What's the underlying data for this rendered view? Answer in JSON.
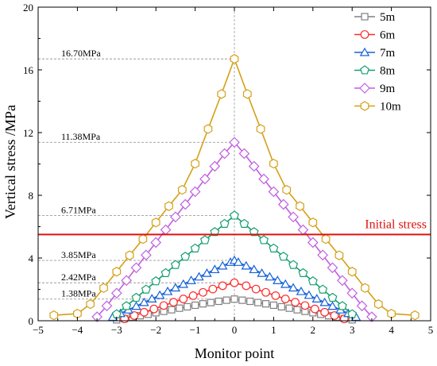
{
  "chart_data": {
    "type": "line",
    "title": "",
    "xlabel": "Monitor point",
    "ylabel": "Vertical stress /MPa",
    "xlim": [
      -5,
      5
    ],
    "ylim": [
      0,
      20
    ],
    "x_ticks": [
      -5,
      -4,
      -3,
      -2,
      -1,
      0,
      1,
      2,
      3,
      4,
      5
    ],
    "y_ticks": [
      0,
      4,
      8,
      12,
      16,
      20
    ],
    "grid": false,
    "legend_position": "top-right",
    "series": [
      {
        "name": "5m",
        "color": "#808080",
        "marker": "square",
        "peak": 1.38,
        "half_width": 3.2,
        "x": [
          -3,
          -2.8,
          -2.6,
          -2.4,
          -2.2,
          -2,
          -1.8,
          -1.6,
          -1.4,
          -1.2,
          -1,
          -0.8,
          -0.6,
          -0.4,
          -0.2,
          0,
          0.2,
          0.4,
          0.6,
          0.8,
          1,
          1.2,
          1.4,
          1.6,
          1.8,
          2,
          2.2,
          2.4,
          2.6,
          2.8,
          3
        ],
        "values": [
          0.06,
          0.14,
          0.23,
          0.32,
          0.41,
          0.51,
          0.6,
          0.7,
          0.8,
          0.89,
          0.99,
          1.08,
          1.16,
          1.24,
          1.31,
          1.38,
          1.31,
          1.24,
          1.16,
          1.08,
          0.99,
          0.89,
          0.8,
          0.7,
          0.6,
          0.51,
          0.41,
          0.32,
          0.23,
          0.14,
          0.06
        ]
      },
      {
        "name": "6m",
        "color": "#ff2a2a",
        "marker": "circle",
        "peak": 2.42,
        "half_width": 3.0,
        "x": [
          -2.8,
          -2.55,
          -2.3,
          -2.05,
          -1.8,
          -1.55,
          -1.3,
          -1.05,
          -0.8,
          -0.55,
          -0.3,
          0,
          0.3,
          0.55,
          0.8,
          1.05,
          1.3,
          1.55,
          1.8,
          2.05,
          2.3,
          2.55,
          2.8
        ],
        "values": [
          0.12,
          0.33,
          0.54,
          0.75,
          0.97,
          1.18,
          1.39,
          1.6,
          1.81,
          2.02,
          2.23,
          2.42,
          2.23,
          2.02,
          1.81,
          1.6,
          1.39,
          1.18,
          0.97,
          0.75,
          0.54,
          0.33,
          0.12
        ]
      },
      {
        "name": "7m",
        "color": "#1560d8",
        "marker": "triangle",
        "peak": 3.85,
        "half_width": 3.3,
        "x": [
          -3.1,
          -2.9,
          -2.7,
          -2.5,
          -2.3,
          -2.1,
          -1.9,
          -1.7,
          -1.5,
          -1.3,
          -1.1,
          -0.9,
          -0.7,
          -0.5,
          -0.3,
          -0.1,
          0,
          0.1,
          0.3,
          0.5,
          0.7,
          0.9,
          1.1,
          1.3,
          1.5,
          1.7,
          1.9,
          2.1,
          2.3,
          2.5,
          2.7,
          2.9,
          3.1
        ],
        "values": [
          0.23,
          0.47,
          0.7,
          0.93,
          1.17,
          1.4,
          1.63,
          1.87,
          2.1,
          2.33,
          2.57,
          2.8,
          3.03,
          3.27,
          3.5,
          3.73,
          3.85,
          3.73,
          3.5,
          3.27,
          3.03,
          2.8,
          2.57,
          2.33,
          2.1,
          1.87,
          1.63,
          1.4,
          1.17,
          0.93,
          0.7,
          0.47,
          0.23
        ]
      },
      {
        "name": "8m",
        "color": "#14a06e",
        "marker": "pentagon",
        "peak": 6.71,
        "half_width": 3.2,
        "x": [
          -3.0,
          -2.75,
          -2.5,
          -2.25,
          -2.0,
          -1.75,
          -1.5,
          -1.25,
          -1.0,
          -0.75,
          -0.5,
          -0.25,
          0,
          0.25,
          0.5,
          0.75,
          1.0,
          1.25,
          1.5,
          1.75,
          2.0,
          2.25,
          2.5,
          2.75,
          3.0
        ],
        "values": [
          0.42,
          0.94,
          1.47,
          1.99,
          2.52,
          3.04,
          3.56,
          4.09,
          4.61,
          5.14,
          5.66,
          6.18,
          6.71,
          6.18,
          5.66,
          5.14,
          4.61,
          4.09,
          3.56,
          3.04,
          2.52,
          1.99,
          1.47,
          0.94,
          0.42
        ]
      },
      {
        "name": "9m",
        "color": "#c060e0",
        "marker": "diamond",
        "peak": 11.38,
        "half_width": 3.5,
        "x": [
          -3.5,
          -3.25,
          -3.0,
          -2.75,
          -2.5,
          -2.25,
          -2.0,
          -1.75,
          -1.5,
          -1.25,
          -1.0,
          -0.75,
          -0.5,
          -0.25,
          0,
          0.25,
          0.5,
          0.75,
          1.0,
          1.25,
          1.5,
          1.75,
          2.0,
          2.25,
          2.5,
          2.75,
          3.0,
          3.25,
          3.5
        ],
        "values": [
          0.25,
          0.95,
          1.76,
          2.57,
          3.38,
          4.19,
          4.99,
          5.8,
          6.62,
          7.42,
          8.23,
          9.04,
          9.85,
          10.66,
          11.38,
          10.66,
          9.85,
          9.04,
          8.23,
          7.42,
          6.62,
          5.8,
          4.99,
          4.19,
          3.38,
          2.57,
          1.76,
          0.95,
          0.25
        ]
      },
      {
        "name": "10m",
        "color": "#d4a017",
        "marker": "hexagon",
        "peak": 16.7,
        "half_width": 4.0,
        "x": [
          -4.6,
          -4.0,
          -3.67,
          -3.33,
          -3.0,
          -2.67,
          -2.33,
          -2.0,
          -1.67,
          -1.33,
          -1.0,
          -0.67,
          -0.33,
          0,
          0.33,
          0.67,
          1.0,
          1.33,
          1.67,
          2.0,
          2.33,
          2.67,
          3.0,
          3.33,
          3.67,
          4.0,
          4.6
        ],
        "values": [
          0.35,
          0.45,
          1.06,
          2.09,
          3.13,
          4.17,
          5.21,
          6.27,
          7.31,
          8.35,
          10.02,
          12.23,
          14.46,
          16.7,
          14.46,
          12.23,
          10.02,
          8.35,
          7.31,
          6.27,
          5.21,
          4.17,
          3.13,
          2.09,
          1.06,
          0.45,
          0.35
        ]
      }
    ],
    "reference_line": {
      "label": "Initial stress",
      "value": 5.5,
      "color": "#e01010"
    },
    "annotations": [
      {
        "text": "16.70MPa",
        "value": 16.7
      },
      {
        "text": "11.38MPa",
        "value": 11.38
      },
      {
        "text": "6.71MPa",
        "value": 6.71
      },
      {
        "text": "3.85MPa",
        "value": 3.85
      },
      {
        "text": "2.42MPa",
        "value": 2.42
      },
      {
        "text": "1.38MPa",
        "value": 1.38
      }
    ]
  }
}
